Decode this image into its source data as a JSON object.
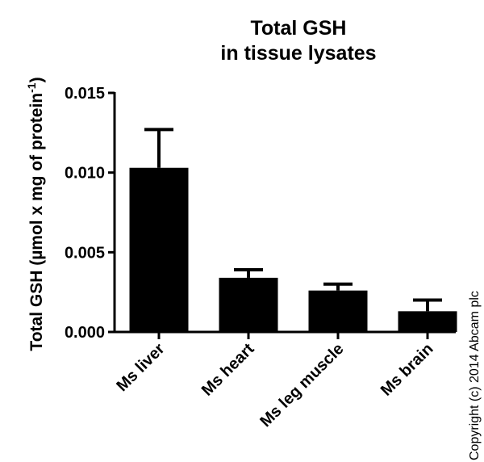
{
  "chart_data": {
    "type": "bar",
    "title": "Total GSH in tissue lysates",
    "title_lines": [
      "Total GSH",
      "in tissue lysates"
    ],
    "xlabel": "",
    "ylabel": "Total GSH (µmol x mg of protein⁻¹)",
    "ylabel_main": "Total GSH (µmol x mg of protein",
    "ylabel_sup": "-1",
    "ylabel_close": ")",
    "ylim": [
      0,
      0.015
    ],
    "yticks": [
      "0.000",
      "0.005",
      "0.010",
      "0.015"
    ],
    "categories": [
      "Ms liver",
      "Ms heart",
      "Ms leg muscle",
      "Ms brain"
    ],
    "values": [
      0.0103,
      0.0034,
      0.0026,
      0.0013
    ],
    "error_upper": [
      0.0024,
      0.0005,
      0.0004,
      0.0007
    ],
    "bar_color": "#000000",
    "grid": false,
    "legend": null
  },
  "copyright": "Copyright (c) 2014 Abcam plc"
}
